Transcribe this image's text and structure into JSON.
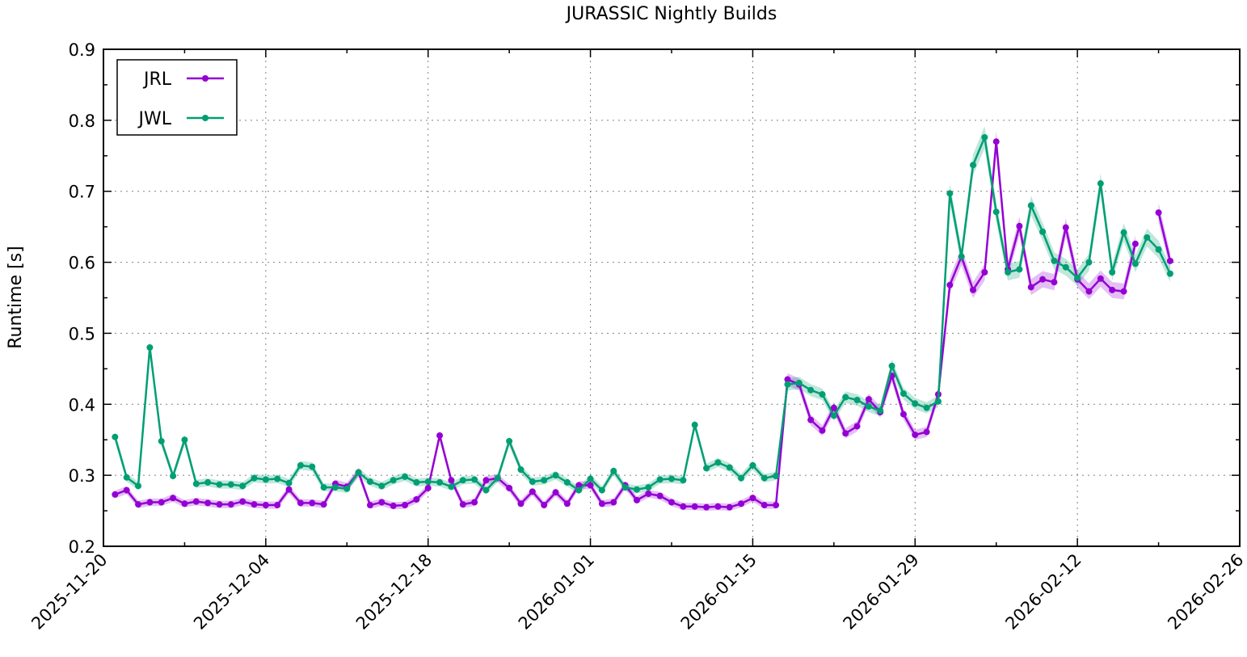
{
  "chart_data": {
    "type": "line",
    "title": "JURASSIC Nightly Builds",
    "xlabel": "",
    "ylabel": "Runtime [s]",
    "x_axis_type": "date",
    "xlim": [
      "2025-11-20",
      "2026-02-26"
    ],
    "ylim": [
      0.2,
      0.9
    ],
    "x_ticks": [
      "2025-11-20",
      "2025-12-04",
      "2025-12-18",
      "2026-01-01",
      "2026-01-15",
      "2026-01-29",
      "2026-02-12",
      "2026-02-26"
    ],
    "y_ticks": [
      "0.2",
      "0.3",
      "0.4",
      "0.5",
      "0.6",
      "0.7",
      "0.8",
      "0.9"
    ],
    "grid": true,
    "legend_position": "top-left",
    "series": [
      {
        "name": "JRL",
        "color": "#9400d3",
        "points": [
          [
            "2025-11-21",
            0.273
          ],
          [
            "2025-11-22",
            0.279
          ],
          [
            "2025-11-23",
            0.259
          ],
          [
            "2025-11-24",
            0.262
          ],
          [
            "2025-11-25",
            0.262
          ],
          [
            "2025-11-26",
            0.268
          ],
          [
            "2025-11-27",
            0.26
          ],
          [
            "2025-11-28",
            0.263
          ],
          [
            "2025-11-29",
            0.261
          ],
          [
            "2025-11-30",
            0.259
          ],
          [
            "2025-12-01",
            0.259
          ],
          [
            "2025-12-02",
            0.263
          ],
          [
            "2025-12-03",
            0.259
          ],
          [
            "2025-12-04",
            0.258
          ],
          [
            "2025-12-05",
            0.258
          ],
          [
            "2025-12-06",
            0.28
          ],
          [
            "2025-12-07",
            0.261
          ],
          [
            "2025-12-08",
            0.261
          ],
          [
            "2025-12-09",
            0.259
          ],
          [
            "2025-12-10",
            0.288
          ],
          [
            "2025-12-11",
            0.284
          ],
          [
            "2025-12-12",
            0.304
          ],
          [
            "2025-12-13",
            0.258
          ],
          [
            "2025-12-14",
            0.262
          ],
          [
            "2025-12-15",
            0.257
          ],
          [
            "2025-12-16",
            0.258
          ],
          [
            "2025-12-17",
            0.266
          ],
          [
            "2025-12-18",
            0.282
          ],
          [
            "2025-12-19",
            0.356
          ],
          [
            "2025-12-20",
            0.293
          ],
          [
            "2025-12-21",
            0.259
          ],
          [
            "2025-12-22",
            0.262
          ],
          [
            "2025-12-23",
            0.293
          ],
          [
            "2025-12-24",
            0.296
          ],
          [
            "2025-12-25",
            0.282
          ],
          [
            "2025-12-26",
            0.26
          ],
          [
            "2025-12-27",
            0.277
          ],
          [
            "2025-12-28",
            0.258
          ],
          [
            "2025-12-29",
            0.276
          ],
          [
            "2025-12-30",
            0.26
          ],
          [
            "2025-12-31",
            0.286
          ],
          [
            "2026-01-01",
            0.286
          ],
          [
            "2026-01-02",
            0.26
          ],
          [
            "2026-01-03",
            0.262
          ],
          [
            "2026-01-04",
            0.286
          ],
          [
            "2026-01-05",
            0.265
          ],
          [
            "2026-01-06",
            0.274
          ],
          [
            "2026-01-07",
            0.271
          ],
          [
            "2026-01-08",
            0.262
          ],
          [
            "2026-01-09",
            0.256
          ],
          [
            "2026-01-10",
            0.256
          ],
          [
            "2026-01-11",
            0.255
          ],
          [
            "2026-01-12",
            0.256
          ],
          [
            "2026-01-13",
            0.255
          ],
          [
            "2026-01-14",
            0.26
          ],
          [
            "2026-01-15",
            0.268
          ],
          [
            "2026-01-16",
            0.258
          ],
          [
            "2026-01-17",
            0.258
          ],
          [
            "2026-01-18",
            0.435
          ],
          [
            "2026-01-19",
            0.428
          ],
          [
            "2026-01-20",
            0.378
          ],
          [
            "2026-01-21",
            0.363
          ],
          [
            "2026-01-22",
            0.395
          ],
          [
            "2026-01-23",
            0.359
          ],
          [
            "2026-01-24",
            0.369
          ],
          [
            "2026-01-25",
            0.407
          ],
          [
            "2026-01-26",
            0.389
          ],
          [
            "2026-01-27",
            0.44
          ],
          [
            "2026-01-28",
            0.386
          ],
          [
            "2026-01-29",
            0.357
          ],
          [
            "2026-01-30",
            0.361
          ],
          [
            "2026-01-31",
            0.414
          ],
          [
            "2026-02-01",
            0.568
          ],
          [
            "2026-02-02",
            0.608
          ],
          [
            "2026-02-03",
            0.561
          ],
          [
            "2026-02-04",
            0.586
          ],
          [
            "2026-02-05",
            0.77
          ],
          [
            "2026-02-06",
            0.59
          ],
          [
            "2026-02-07",
            0.651
          ],
          [
            "2026-02-08",
            0.565
          ],
          [
            "2026-02-09",
            0.576
          ],
          [
            "2026-02-10",
            0.572
          ],
          [
            "2026-02-11",
            0.649
          ],
          [
            "2026-02-12",
            0.576
          ],
          [
            "2026-02-13",
            0.559
          ],
          [
            "2026-02-14",
            0.577
          ],
          [
            "2026-02-15",
            0.561
          ],
          [
            "2026-02-16",
            0.559
          ],
          [
            "2026-02-17",
            0.626
          ],
          null,
          [
            "2026-02-19",
            0.67
          ],
          [
            "2026-02-20",
            0.602
          ]
        ]
      },
      {
        "name": "JWL",
        "color": "#009e73",
        "points": [
          [
            "2025-11-21",
            0.354
          ],
          [
            "2025-11-22",
            0.297
          ],
          [
            "2025-11-23",
            0.285
          ],
          [
            "2025-11-24",
            0.48
          ],
          [
            "2025-11-25",
            0.348
          ],
          [
            "2025-11-26",
            0.299
          ],
          [
            "2025-11-27",
            0.35
          ],
          [
            "2025-11-28",
            0.288
          ],
          [
            "2025-11-29",
            0.29
          ],
          [
            "2025-11-30",
            0.287
          ],
          [
            "2025-12-01",
            0.287
          ],
          [
            "2025-12-02",
            0.285
          ],
          [
            "2025-12-03",
            0.296
          ],
          [
            "2025-12-04",
            0.294
          ],
          [
            "2025-12-05",
            0.295
          ],
          [
            "2025-12-06",
            0.289
          ],
          [
            "2025-12-07",
            0.314
          ],
          [
            "2025-12-08",
            0.312
          ],
          [
            "2025-12-09",
            0.283
          ],
          [
            "2025-12-10",
            0.283
          ],
          [
            "2025-12-11",
            0.281
          ],
          [
            "2025-12-12",
            0.304
          ],
          [
            "2025-12-13",
            0.291
          ],
          [
            "2025-12-14",
            0.285
          ],
          [
            "2025-12-15",
            0.293
          ],
          [
            "2025-12-16",
            0.298
          ],
          [
            "2025-12-17",
            0.29
          ],
          [
            "2025-12-18",
            0.291
          ],
          [
            "2025-12-19",
            0.29
          ],
          [
            "2025-12-20",
            0.284
          ],
          [
            "2025-12-21",
            0.293
          ],
          [
            "2025-12-22",
            0.294
          ],
          [
            "2025-12-23",
            0.279
          ],
          [
            "2025-12-24",
            0.296
          ],
          [
            "2025-12-25",
            0.348
          ],
          [
            "2025-12-26",
            0.308
          ],
          [
            "2025-12-27",
            0.291
          ],
          [
            "2025-12-28",
            0.293
          ],
          [
            "2025-12-29",
            0.3
          ],
          [
            "2025-12-30",
            0.29
          ],
          [
            "2025-12-31",
            0.279
          ],
          [
            "2026-01-01",
            0.295
          ],
          [
            "2026-01-02",
            0.279
          ],
          [
            "2026-01-03",
            0.306
          ],
          [
            "2026-01-04",
            0.283
          ],
          [
            "2026-01-05",
            0.28
          ],
          [
            "2026-01-06",
            0.283
          ],
          [
            "2026-01-07",
            0.294
          ],
          [
            "2026-01-08",
            0.295
          ],
          [
            "2026-01-09",
            0.293
          ],
          [
            "2026-01-10",
            0.371
          ],
          [
            "2026-01-11",
            0.31
          ],
          [
            "2026-01-12",
            0.318
          ],
          [
            "2026-01-13",
            0.311
          ],
          [
            "2026-01-14",
            0.296
          ],
          [
            "2026-01-15",
            0.314
          ],
          [
            "2026-01-16",
            0.296
          ],
          [
            "2026-01-17",
            0.299
          ],
          [
            "2026-01-18",
            0.428
          ],
          [
            "2026-01-19",
            0.43
          ],
          [
            "2026-01-20",
            0.42
          ],
          [
            "2026-01-21",
            0.414
          ],
          [
            "2026-01-22",
            0.384
          ],
          [
            "2026-01-23",
            0.41
          ],
          [
            "2026-01-24",
            0.406
          ],
          [
            "2026-01-25",
            0.397
          ],
          [
            "2026-01-26",
            0.391
          ],
          [
            "2026-01-27",
            0.454
          ],
          [
            "2026-01-28",
            0.415
          ],
          [
            "2026-01-29",
            0.401
          ],
          [
            "2026-01-30",
            0.395
          ],
          [
            "2026-01-31",
            0.404
          ],
          [
            "2026-02-01",
            0.697
          ],
          [
            "2026-02-02",
            0.608
          ],
          [
            "2026-02-03",
            0.737
          ],
          [
            "2026-02-04",
            0.776
          ],
          [
            "2026-02-05",
            0.671
          ],
          [
            "2026-02-06",
            0.586
          ],
          [
            "2026-02-07",
            0.59
          ],
          [
            "2026-02-08",
            0.68
          ],
          [
            "2026-02-09",
            0.643
          ],
          [
            "2026-02-10",
            0.602
          ],
          [
            "2026-02-11",
            0.593
          ],
          [
            "2026-02-12",
            0.578
          ],
          [
            "2026-02-13",
            0.6
          ],
          [
            "2026-02-14",
            0.711
          ],
          [
            "2026-02-15",
            0.586
          ],
          [
            "2026-02-16",
            0.642
          ],
          [
            "2026-02-17",
            0.598
          ],
          [
            "2026-02-18",
            0.635
          ],
          [
            "2026-02-19",
            0.618
          ],
          [
            "2026-02-20",
            0.584
          ]
        ]
      }
    ]
  }
}
